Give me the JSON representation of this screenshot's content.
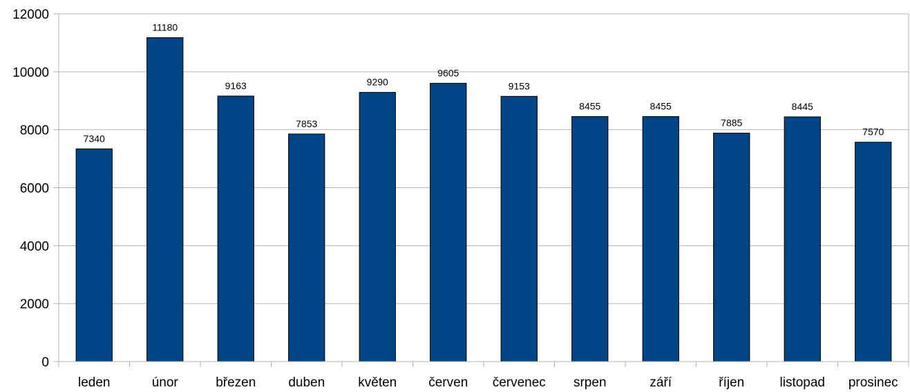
{
  "chart_data": {
    "type": "bar",
    "title": "",
    "xlabel": "",
    "ylabel": "",
    "categories": [
      "leden",
      "únor",
      "březen",
      "duben",
      "květen",
      "červen",
      "červenec",
      "srpen",
      "září",
      "říjen",
      "listopad",
      "prosinec"
    ],
    "values": [
      7340,
      11180,
      9163,
      7853,
      9290,
      9605,
      9153,
      8455,
      8455,
      7885,
      8445,
      7570
    ],
    "ylim": [
      0,
      12000
    ],
    "yticks": [
      0,
      2000,
      4000,
      6000,
      8000,
      10000,
      12000
    ],
    "grid": true,
    "legend": "none",
    "bar_color": "#004586",
    "grid_color": "#b3b3b3"
  }
}
